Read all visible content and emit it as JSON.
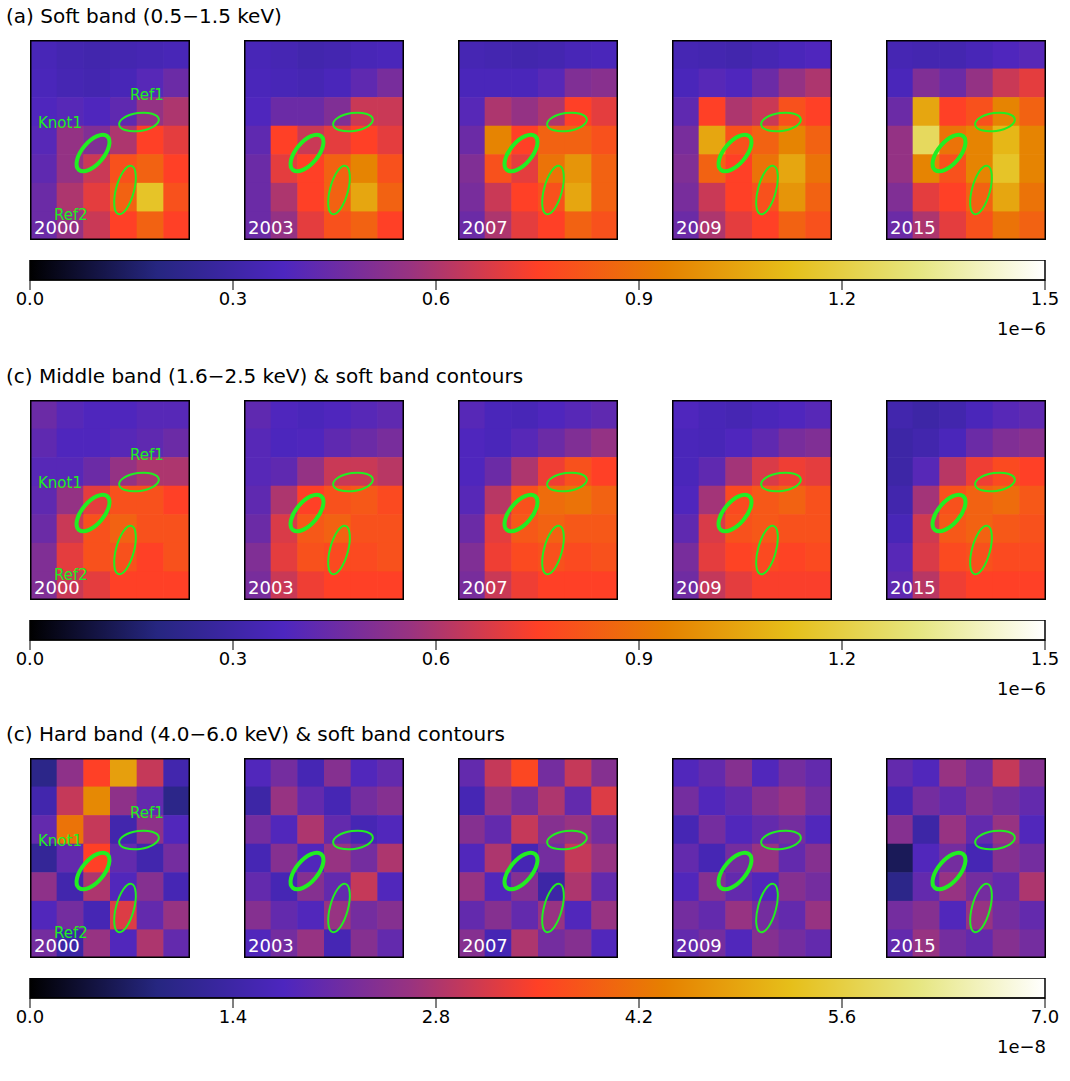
{
  "chart_data": [
    {
      "type": "heatmap",
      "title": "(a) Soft band (0.5−1.5 keV)",
      "region_labels": [
        "Knot1",
        "Ref1",
        "Ref2"
      ],
      "colorbar": {
        "range": [
          0,
          1.5
        ],
        "ticks": [
          {
            "value": 0,
            "label": "0.0"
          },
          0.3,
          0.6,
          0.9,
          1.2,
          1.5
        ],
        "multiplier": "1e−6"
      },
      "panels": [
        {
          "year": "2000",
          "cells": [
            [
              0.35,
              0.33,
              0.32,
              0.33,
              0.34,
              0.35
            ],
            [
              0.36,
              0.34,
              0.33,
              0.35,
              0.4,
              0.45
            ],
            [
              0.38,
              0.4,
              0.38,
              0.42,
              0.55,
              0.6
            ],
            [
              0.4,
              0.55,
              0.5,
              0.6,
              0.75,
              0.7
            ],
            [
              0.42,
              0.55,
              0.65,
              0.8,
              0.85,
              0.75
            ],
            [
              0.45,
              0.6,
              0.7,
              0.85,
              1.15,
              0.8
            ],
            [
              0.45,
              0.55,
              0.65,
              0.75,
              0.85,
              0.75
            ]
          ]
        },
        {
          "year": "2003",
          "cells": [
            [
              0.35,
              0.34,
              0.32,
              0.33,
              0.35,
              0.36
            ],
            [
              0.36,
              0.35,
              0.34,
              0.36,
              0.42,
              0.48
            ],
            [
              0.38,
              0.45,
              0.45,
              0.5,
              0.65,
              0.65
            ],
            [
              0.42,
              0.75,
              0.65,
              0.7,
              0.75,
              0.7
            ],
            [
              0.45,
              0.7,
              0.75,
              0.85,
              0.95,
              0.8
            ],
            [
              0.45,
              0.6,
              0.75,
              0.85,
              1.05,
              0.85
            ],
            [
              0.45,
              0.55,
              0.7,
              0.8,
              0.85,
              0.75
            ]
          ]
        },
        {
          "year": "2007",
          "cells": [
            [
              0.34,
              0.33,
              0.32,
              0.33,
              0.35,
              0.36
            ],
            [
              0.36,
              0.36,
              0.36,
              0.4,
              0.5,
              0.52
            ],
            [
              0.4,
              0.6,
              0.55,
              0.6,
              0.75,
              0.7
            ],
            [
              0.45,
              0.95,
              0.75,
              0.85,
              0.85,
              0.8
            ],
            [
              0.5,
              0.8,
              0.7,
              0.9,
              1.0,
              0.85
            ],
            [
              0.48,
              0.65,
              0.75,
              0.8,
              1.05,
              0.85
            ],
            [
              0.45,
              0.6,
              0.7,
              0.75,
              0.85,
              0.8
            ]
          ]
        },
        {
          "year": "2009",
          "cells": [
            [
              0.34,
              0.33,
              0.32,
              0.34,
              0.36,
              0.38
            ],
            [
              0.36,
              0.4,
              0.38,
              0.45,
              0.55,
              0.6
            ],
            [
              0.42,
              0.75,
              0.6,
              0.65,
              0.8,
              0.75
            ],
            [
              0.48,
              1.05,
              0.8,
              0.85,
              0.95,
              0.85
            ],
            [
              0.5,
              0.85,
              0.75,
              0.9,
              1.05,
              0.9
            ],
            [
              0.48,
              0.65,
              0.75,
              0.8,
              1.0,
              0.85
            ],
            [
              0.45,
              0.6,
              0.7,
              0.75,
              0.85,
              0.8
            ]
          ]
        },
        {
          "year": "2015",
          "cells": [
            [
              0.34,
              0.33,
              0.33,
              0.35,
              0.38,
              0.4
            ],
            [
              0.36,
              0.5,
              0.45,
              0.55,
              0.65,
              0.7
            ],
            [
              0.45,
              1.05,
              0.75,
              0.8,
              0.95,
              0.85
            ],
            [
              0.55,
              1.25,
              0.9,
              0.95,
              1.1,
              0.95
            ],
            [
              0.55,
              0.95,
              0.8,
              0.95,
              1.15,
              0.95
            ],
            [
              0.5,
              0.7,
              0.75,
              0.85,
              1.05,
              0.9
            ],
            [
              0.45,
              0.6,
              0.7,
              0.8,
              0.9,
              0.85
            ]
          ]
        }
      ]
    },
    {
      "type": "heatmap",
      "title": "(c) Middle band (1.6−2.5 keV) & soft band contours",
      "region_labels": [
        "Knot1",
        "Ref1",
        "Ref2"
      ],
      "colorbar": {
        "range": [
          0,
          1.5
        ],
        "ticks": [
          {
            "value": 0,
            "label": "0.0"
          },
          0.3,
          0.6,
          0.9,
          1.2,
          1.5
        ],
        "multiplier": "1e−6"
      },
      "panels": [
        {
          "year": "2000",
          "cells": [
            [
              0.45,
              0.4,
              0.38,
              0.38,
              0.4,
              0.4
            ],
            [
              0.42,
              0.38,
              0.38,
              0.4,
              0.42,
              0.45
            ],
            [
              0.4,
              0.4,
              0.45,
              0.55,
              0.6,
              0.6
            ],
            [
              0.42,
              0.55,
              0.7,
              0.8,
              0.8,
              0.75
            ],
            [
              0.45,
              0.65,
              0.8,
              0.85,
              0.8,
              0.8
            ],
            [
              0.5,
              0.7,
              0.8,
              0.8,
              0.75,
              0.8
            ],
            [
              0.5,
              0.65,
              0.7,
              0.75,
              0.75,
              0.75
            ]
          ]
        },
        {
          "year": "2003",
          "cells": [
            [
              0.42,
              0.38,
              0.36,
              0.38,
              0.4,
              0.42
            ],
            [
              0.4,
              0.37,
              0.38,
              0.42,
              0.45,
              0.48
            ],
            [
              0.4,
              0.42,
              0.55,
              0.65,
              0.65,
              0.62
            ],
            [
              0.42,
              0.6,
              0.75,
              0.8,
              0.82,
              0.78
            ],
            [
              0.45,
              0.68,
              0.82,
              0.85,
              0.8,
              0.8
            ],
            [
              0.5,
              0.7,
              0.8,
              0.78,
              0.78,
              0.8
            ],
            [
              0.48,
              0.65,
              0.72,
              0.75,
              0.75,
              0.75
            ]
          ]
        },
        {
          "year": "2007",
          "cells": [
            [
              0.4,
              0.36,
              0.35,
              0.38,
              0.4,
              0.42
            ],
            [
              0.38,
              0.36,
              0.4,
              0.45,
              0.5,
              0.55
            ],
            [
              0.38,
              0.45,
              0.6,
              0.72,
              0.8,
              0.75
            ],
            [
              0.4,
              0.62,
              0.8,
              0.88,
              0.9,
              0.85
            ],
            [
              0.45,
              0.7,
              0.82,
              0.85,
              0.82,
              0.82
            ],
            [
              0.5,
              0.72,
              0.78,
              0.8,
              0.78,
              0.8
            ],
            [
              0.48,
              0.65,
              0.72,
              0.75,
              0.75,
              0.75
            ]
          ]
        },
        {
          "year": "2009",
          "cells": [
            [
              0.38,
              0.35,
              0.34,
              0.36,
              0.38,
              0.4
            ],
            [
              0.36,
              0.35,
              0.38,
              0.42,
              0.48,
              0.5
            ],
            [
              0.36,
              0.42,
              0.58,
              0.68,
              0.72,
              0.7
            ],
            [
              0.38,
              0.58,
              0.78,
              0.82,
              0.85,
              0.8
            ],
            [
              0.42,
              0.68,
              0.8,
              0.82,
              0.8,
              0.8
            ],
            [
              0.48,
              0.7,
              0.76,
              0.78,
              0.76,
              0.78
            ],
            [
              0.46,
              0.64,
              0.7,
              0.74,
              0.74,
              0.74
            ]
          ]
        },
        {
          "year": "2015",
          "cells": [
            [
              0.32,
              0.3,
              0.32,
              0.36,
              0.4,
              0.42
            ],
            [
              0.3,
              0.32,
              0.36,
              0.45,
              0.5,
              0.52
            ],
            [
              0.3,
              0.4,
              0.62,
              0.72,
              0.78,
              0.75
            ],
            [
              0.32,
              0.58,
              0.8,
              0.85,
              0.88,
              0.82
            ],
            [
              0.35,
              0.66,
              0.82,
              0.85,
              0.82,
              0.8
            ],
            [
              0.4,
              0.68,
              0.78,
              0.8,
              0.78,
              0.78
            ],
            [
              0.42,
              0.62,
              0.72,
              0.75,
              0.75,
              0.75
            ]
          ]
        }
      ]
    },
    {
      "type": "heatmap",
      "title": "(c) Hard band (4.0−6.0 keV) & soft band contours",
      "region_labels": [
        "Knot1",
        "Ref1",
        "Ref2"
      ],
      "colorbar": {
        "range": [
          0,
          7
        ],
        "ticks": [
          {
            "value": 0,
            "label": "0.0"
          },
          1.4,
          2.8,
          4.2,
          5.6,
          {
            "value": 7,
            "label": "7.0"
          }
        ],
        "multiplier": "1e−8"
      },
      "panels": [
        {
          "year": "2000",
          "cells": [
            [
              1.0,
              2.5,
              3.5,
              4.8,
              3.0,
              1.5
            ],
            [
              1.5,
              3.0,
              4.5,
              2.5,
              2.0,
              1.0
            ],
            [
              2.0,
              4.2,
              3.0,
              1.5,
              2.5,
              1.8
            ],
            [
              1.2,
              2.0,
              3.5,
              2.0,
              1.5,
              2.2
            ],
            [
              2.5,
              1.5,
              2.8,
              1.8,
              2.4,
              1.6
            ],
            [
              1.8,
              2.2,
              1.6,
              3.2,
              2.0,
              2.6
            ],
            [
              2.2,
              1.4,
              2.6,
              1.8,
              2.8,
              2.0
            ]
          ]
        },
        {
          "year": "2003",
          "cells": [
            [
              1.8,
              2.2,
              1.6,
              2.4,
              1.8,
              2.0
            ],
            [
              1.4,
              2.6,
              2.0,
              1.6,
              2.2,
              2.4
            ],
            [
              2.2,
              1.8,
              2.8,
              2.0,
              1.6,
              1.8
            ],
            [
              1.6,
              2.4,
              1.8,
              2.6,
              2.2,
              2.8
            ],
            [
              2.0,
              1.6,
              2.4,
              2.0,
              3.0,
              1.8
            ],
            [
              2.4,
              2.0,
              1.8,
              2.6,
              2.2,
              2.4
            ],
            [
              1.8,
              2.2,
              2.6,
              1.6,
              2.4,
              2.0
            ]
          ]
        },
        {
          "year": "2007",
          "cells": [
            [
              2.0,
              3.0,
              3.6,
              2.2,
              3.0,
              2.4
            ],
            [
              1.6,
              2.6,
              2.2,
              2.8,
              2.0,
              3.2
            ],
            [
              2.4,
              2.0,
              3.0,
              2.4,
              2.6,
              2.2
            ],
            [
              1.8,
              2.8,
              1.6,
              2.2,
              3.0,
              2.6
            ],
            [
              2.6,
              1.8,
              2.4,
              1.4,
              2.8,
              2.0
            ],
            [
              2.0,
              2.4,
              2.0,
              2.6,
              1.8,
              2.6
            ],
            [
              2.4,
              1.6,
              2.8,
              2.2,
              2.4,
              1.8
            ]
          ]
        },
        {
          "year": "2009",
          "cells": [
            [
              1.8,
              2.0,
              2.4,
              1.8,
              2.2,
              2.0
            ],
            [
              2.2,
              1.8,
              2.0,
              2.4,
              2.6,
              2.2
            ],
            [
              1.6,
              2.2,
              1.8,
              2.0,
              2.2,
              1.8
            ],
            [
              2.0,
              1.6,
              2.2,
              2.6,
              2.0,
              2.4
            ],
            [
              1.8,
              2.4,
              2.0,
              1.8,
              2.4,
              2.2
            ],
            [
              2.2,
              2.0,
              2.6,
              2.2,
              2.0,
              2.6
            ],
            [
              2.0,
              2.2,
              1.8,
              2.4,
              2.2,
              2.0
            ]
          ]
        },
        {
          "year": "2015",
          "cells": [
            [
              2.0,
              1.8,
              2.6,
              2.2,
              3.0,
              2.4
            ],
            [
              1.6,
              2.2,
              2.0,
              2.4,
              2.2,
              2.0
            ],
            [
              2.4,
              1.4,
              2.6,
              2.0,
              2.6,
              1.8
            ],
            [
              0.6,
              1.8,
              2.2,
              1.6,
              2.4,
              2.2
            ],
            [
              1.0,
              2.0,
              2.6,
              2.2,
              2.0,
              2.8
            ],
            [
              2.2,
              2.4,
              1.8,
              2.6,
              2.2,
              2.0
            ],
            [
              2.0,
              2.6,
              2.2,
              2.0,
              2.4,
              2.2
            ]
          ]
        }
      ]
    }
  ]
}
